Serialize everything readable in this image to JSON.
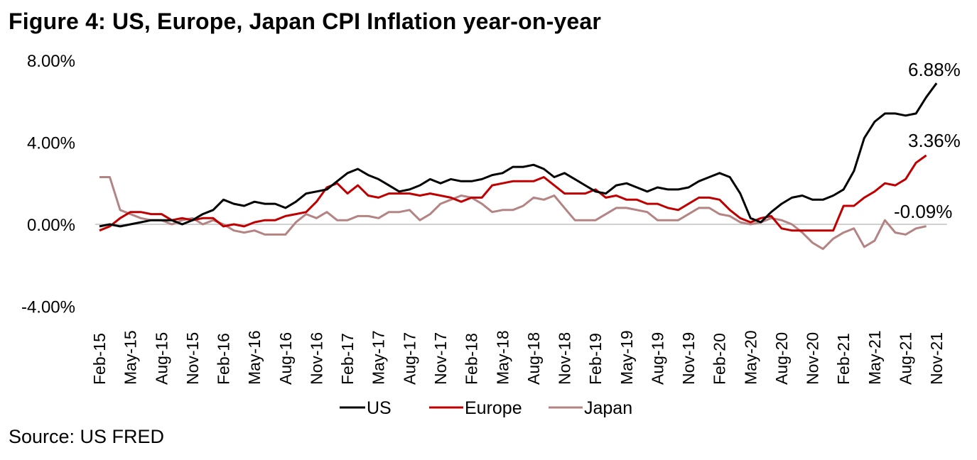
{
  "header": {
    "title": "Figure 4: US, Europe, Japan CPI Inflation year-on-year"
  },
  "footer": {
    "source": "Source: US FRED"
  },
  "chart_data": {
    "type": "line",
    "title": "Figure 4: US, Europe, Japan CPI Inflation year-on-year",
    "xlabel": "",
    "ylabel": "",
    "ylim": [
      -4,
      8
    ],
    "y_ticks": [
      {
        "value": 8,
        "label": "8.00%"
      },
      {
        "value": 4,
        "label": "4.00%"
      },
      {
        "value": 0,
        "label": "0.00%"
      },
      {
        "value": -4,
        "label": "-4.00%"
      }
    ],
    "x_tick_labels": [
      "Feb-15",
      "May-15",
      "Aug-15",
      "Nov-15",
      "Feb-16",
      "May-16",
      "Aug-16",
      "Nov-16",
      "Feb-17",
      "May-17",
      "Aug-17",
      "Nov-17",
      "Feb-18",
      "May-18",
      "Aug-18",
      "Nov-18",
      "Feb-19",
      "May-19",
      "Aug-19",
      "Nov-19",
      "Feb-20",
      "May-20",
      "Aug-20",
      "Nov-20",
      "Feb-21",
      "May-21",
      "Aug-21",
      "Nov-21"
    ],
    "x_start": "Feb-15",
    "x_interval": "monthly",
    "grid": false,
    "zero_line": true,
    "legend_position": "bottom",
    "series": [
      {
        "name": "US",
        "color": "#000000",
        "values": [
          -0.1,
          0.0,
          -0.1,
          0.0,
          0.1,
          0.2,
          0.2,
          0.2,
          0.0,
          0.2,
          0.5,
          0.7,
          1.2,
          1.0,
          0.9,
          1.1,
          1.0,
          1.0,
          0.8,
          1.1,
          1.5,
          1.6,
          1.7,
          2.1,
          2.5,
          2.7,
          2.4,
          2.2,
          1.9,
          1.6,
          1.7,
          1.9,
          2.2,
          2.0,
          2.2,
          2.1,
          2.1,
          2.2,
          2.4,
          2.5,
          2.8,
          2.8,
          2.9,
          2.7,
          2.3,
          2.5,
          2.2,
          1.9,
          1.6,
          1.5,
          1.9,
          2.0,
          1.8,
          1.6,
          1.8,
          1.7,
          1.7,
          1.8,
          2.1,
          2.3,
          2.5,
          2.3,
          1.5,
          0.3,
          0.1,
          0.6,
          1.0,
          1.3,
          1.4,
          1.2,
          1.2,
          1.4,
          1.7,
          2.6,
          4.2,
          5.0,
          5.4,
          5.4,
          5.3,
          5.4,
          6.2,
          6.88
        ],
        "end_label": "6.88%"
      },
      {
        "name": "Europe",
        "color": "#c00000",
        "values": [
          -0.3,
          -0.1,
          0.3,
          0.6,
          0.6,
          0.5,
          0.5,
          0.2,
          0.3,
          0.2,
          0.3,
          0.3,
          -0.1,
          0.0,
          -0.1,
          0.1,
          0.2,
          0.2,
          0.4,
          0.5,
          0.6,
          1.1,
          1.8,
          2.0,
          1.5,
          1.9,
          1.4,
          1.3,
          1.5,
          1.5,
          1.5,
          1.4,
          1.5,
          1.4,
          1.3,
          1.1,
          1.3,
          1.3,
          1.9,
          2.0,
          2.1,
          2.1,
          2.1,
          2.3,
          1.9,
          1.5,
          1.5,
          1.5,
          1.7,
          1.3,
          1.4,
          1.2,
          1.2,
          1.0,
          1.0,
          0.8,
          0.7,
          1.0,
          1.3,
          1.3,
          1.2,
          0.7,
          0.3,
          0.1,
          0.3,
          0.4,
          -0.2,
          -0.3,
          -0.3,
          -0.3,
          -0.3,
          -0.3,
          0.9,
          0.9,
          1.3,
          1.6,
          2.0,
          1.9,
          2.2,
          3.0,
          3.36
        ],
        "end_label": "3.36%"
      },
      {
        "name": "Japan",
        "color": "#b48484",
        "values": [
          2.3,
          2.3,
          0.7,
          0.5,
          0.3,
          0.2,
          0.2,
          0.0,
          0.2,
          0.3,
          0.0,
          0.2,
          0.0,
          -0.3,
          -0.4,
          -0.3,
          -0.5,
          -0.5,
          -0.5,
          0.1,
          0.5,
          0.3,
          0.6,
          0.2,
          0.2,
          0.4,
          0.4,
          0.3,
          0.6,
          0.6,
          0.7,
          0.2,
          0.5,
          1.0,
          1.2,
          1.4,
          1.3,
          1.0,
          0.6,
          0.7,
          0.7,
          0.9,
          1.3,
          1.2,
          1.4,
          0.8,
          0.2,
          0.2,
          0.2,
          0.5,
          0.8,
          0.8,
          0.7,
          0.6,
          0.2,
          0.2,
          0.2,
          0.5,
          0.8,
          0.8,
          0.5,
          0.4,
          0.1,
          0.0,
          0.1,
          0.3,
          0.2,
          0.0,
          -0.4,
          -0.9,
          -1.2,
          -0.7,
          -0.4,
          -0.2,
          -1.1,
          -0.8,
          0.2,
          -0.4,
          -0.5,
          -0.2,
          -0.09
        ],
        "end_label": "-0.09%"
      }
    ]
  }
}
